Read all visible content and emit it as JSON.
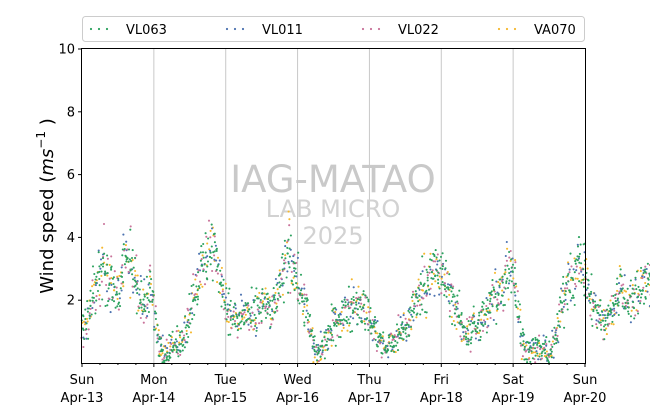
{
  "chart_data": {
    "type": "scatter",
    "ylabel_main": "Wind speed (",
    "ylabel_unit": "ms",
    "ylabel_exp": "−1",
    "ylabel_close": " )",
    "ylim": [
      0,
      10
    ],
    "yticks": [
      2,
      4,
      6,
      8,
      10
    ],
    "xlim": [
      "2025-04-13",
      "2025-04-20"
    ],
    "x_ticks": [
      {
        "date": "2025-04-13",
        "day": "Sun",
        "label": "Apr-13"
      },
      {
        "date": "2025-04-14",
        "day": "Mon",
        "label": "Apr-14"
      },
      {
        "date": "2025-04-15",
        "day": "Tue",
        "label": "Apr-15"
      },
      {
        "date": "2025-04-16",
        "day": "Wed",
        "label": "Apr-16"
      },
      {
        "date": "2025-04-17",
        "day": "Thu",
        "label": "Apr-17"
      },
      {
        "date": "2025-04-18",
        "day": "Fri",
        "label": "Apr-18"
      },
      {
        "date": "2025-04-19",
        "day": "Sat",
        "label": "Apr-19"
      },
      {
        "date": "2025-04-20",
        "day": "Sun",
        "label": "Apr-20"
      }
    ],
    "grid": "vertical",
    "legend_position": "top",
    "watermark": [
      "IAG-MATAO",
      "LAB MICRO",
      "2025"
    ],
    "series": [
      {
        "name": "VL063",
        "color": "#2ca25f"
      },
      {
        "name": "VL011",
        "color": "#4c72b0"
      },
      {
        "name": "VL022",
        "color": "#c9739a"
      },
      {
        "name": "VA070",
        "color": "#f5b82e"
      }
    ],
    "hourly_profile": {
      "note_units": "m/s",
      "start": "2025-04-13 00:00",
      "values": [
        1.0,
        1.2,
        1.5,
        1.8,
        2.2,
        2.6,
        2.9,
        3.1,
        3.0,
        2.7,
        2.5,
        2.4,
        2.2,
        2.6,
        3.0,
        3.3,
        3.4,
        3.1,
        2.7,
        2.2,
        1.8,
        1.9,
        2.0,
        2.3,
        1.7,
        1.1,
        0.6,
        0.4,
        0.3,
        0.4,
        0.5,
        0.6,
        0.5,
        0.6,
        0.8,
        1.2,
        1.6,
        2.0,
        2.4,
        2.7,
        3.0,
        3.2,
        3.4,
        3.6,
        3.7,
        3.3,
        2.8,
        2.4,
        2.0,
        1.7,
        1.5,
        1.4,
        1.3,
        1.4,
        1.5,
        1.6,
        1.5,
        1.4,
        1.5,
        1.7,
        1.8,
        1.8,
        1.7,
        1.6,
        1.8,
        2.0,
        2.3,
        2.7,
        3.2,
        3.6,
        3.4,
        3.0,
        2.6,
        2.2,
        2.0,
        1.7,
        1.2,
        0.7,
        0.4,
        0.3,
        0.4,
        0.6,
        0.8,
        1.0,
        1.2,
        1.3,
        1.4,
        1.5,
        1.6,
        1.7,
        1.8,
        1.9,
        2.0,
        1.9,
        1.7,
        1.6,
        1.4,
        1.2,
        1.0,
        0.8,
        0.6,
        0.5,
        0.5,
        0.6,
        0.7,
        0.8,
        0.9,
        1.0,
        1.1,
        1.3,
        1.5,
        1.8,
        2.1,
        2.3,
        2.5,
        2.7,
        2.8,
        2.9,
        3.0,
        2.9,
        2.8,
        2.6,
        2.4,
        2.2,
        2.0,
        1.8,
        1.5,
        1.2,
        1.0,
        1.0,
        1.1,
        1.2,
        1.2,
        1.3,
        1.4,
        1.6,
        1.8,
        2.0,
        2.1,
        2.1,
        2.3,
        2.6,
        3.0,
        3.2,
        2.8,
        2.2,
        1.4,
        0.8,
        0.5,
        0.4,
        0.4,
        0.5,
        0.5,
        0.4,
        0.4,
        0.4,
        0.3,
        0.5,
        0.8,
        1.2,
        1.7,
        2.1,
        2.4,
        2.6,
        2.7,
        3.0,
        3.3,
        3.1,
        2.8,
        2.4,
        2.0,
        1.8,
        1.6,
        1.5,
        1.4,
        1.3,
        1.5,
        1.8,
        2.0,
        2.2,
        2.3,
        2.1,
        2.0,
        1.9,
        2.0,
        2.2,
        2.4,
        2.6,
        2.7,
        2.6,
        2.4,
        2.0
      ]
    }
  }
}
